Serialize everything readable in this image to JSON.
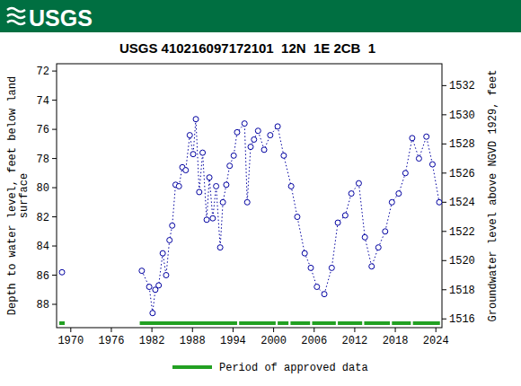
{
  "chart_data": {
    "type": "line",
    "logo_text": "USGS",
    "title": "USGS 410216097172101  12N  1E 2CB  1",
    "y_label": [
      "Depth to water level, feet below land",
      "surface"
    ],
    "y2_label": "Groundwater level above NGVD 1929, feet",
    "xlim": [
      1967.9,
      2024.9
    ],
    "xticks": [
      1970,
      1976,
      1982,
      1988,
      1994,
      2000,
      2006,
      2012,
      2018,
      2024
    ],
    "ylim": [
      89.6,
      71.5
    ],
    "yticks": [
      72,
      74,
      76,
      78,
      80,
      82,
      84,
      86,
      88
    ],
    "y2lim": [
      1515.4,
      1533.5
    ],
    "y2ticks": [
      1516,
      1518,
      1520,
      1522,
      1524,
      1526,
      1528,
      1530,
      1532
    ],
    "grid": false,
    "x": [
      1968.7,
      1975.0,
      1980.5,
      1981.6,
      1982.1,
      1982.5,
      1983.0,
      1983.6,
      1984.1,
      1984.6,
      1985.0,
      1985.5,
      1986.0,
      1986.5,
      1987.0,
      1987.6,
      1988.1,
      1988.5,
      1989.0,
      1989.5,
      1990.1,
      1990.5,
      1991.0,
      1991.5,
      1992.1,
      1992.5,
      1993.0,
      1993.5,
      1994.1,
      1994.6,
      1995.7,
      1996.1,
      1996.6,
      1997.1,
      1997.7,
      1998.6,
      1999.5,
      2000.6,
      2001.5,
      2002.6,
      2003.5,
      2004.6,
      2005.5,
      2006.4,
      2007.5,
      2008.6,
      2009.5,
      2010.6,
      2011.5,
      2012.6,
      2013.5,
      2014.5,
      2015.5,
      2016.5,
      2017.5,
      2018.5,
      2019.5,
      2020.5,
      2021.5,
      2022.6,
      2023.5,
      2024.5
    ],
    "series": [
      {
        "name": "Depth to water level",
        "color": "#0000a0",
        "marker": "circle-open",
        "line_style": "dotted",
        "values": [
          85.8,
          null,
          85.7,
          86.8,
          88.6,
          87.0,
          86.7,
          84.5,
          86.0,
          83.6,
          82.6,
          79.8,
          79.9,
          78.6,
          78.8,
          76.4,
          77.7,
          75.3,
          80.3,
          77.6,
          82.2,
          79.3,
          82.1,
          79.9,
          84.1,
          81.0,
          79.8,
          78.5,
          77.8,
          76.2,
          75.6,
          81.0,
          77.2,
          76.7,
          76.1,
          77.4,
          76.4,
          75.8,
          77.8,
          79.9,
          82.0,
          84.5,
          85.5,
          86.8,
          87.3,
          85.5,
          82.4,
          81.9,
          80.4,
          79.7,
          83.4,
          85.4,
          84.1,
          83.0,
          81.0,
          80.4,
          79.0,
          76.6,
          78.0,
          76.5,
          78.4,
          81.0
        ]
      }
    ],
    "approved": {
      "name": "Period of approved data",
      "color": "#22a022",
      "periods": [
        [
          1968.3,
          1969.1
        ],
        [
          1980.2,
          1994.6
        ],
        [
          1994.9,
          2000.3
        ],
        [
          2000.6,
          2002.2
        ],
        [
          2002.5,
          2005.4
        ],
        [
          2005.7,
          2009.2
        ],
        [
          2009.5,
          2013.1
        ],
        [
          2013.4,
          2017.2
        ],
        [
          2017.5,
          2020.3
        ],
        [
          2020.6,
          2024.6
        ]
      ]
    },
    "header_color": "#006f41"
  }
}
